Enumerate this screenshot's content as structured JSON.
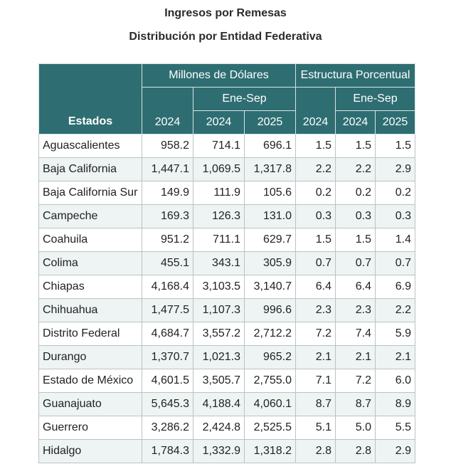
{
  "title": "Ingresos por Remesas",
  "subtitle": "Distribución por Entidad Federativa",
  "headers": {
    "estados": "Estados",
    "millones": "Millones de Dólares",
    "estructura": "Estructura Porcentual",
    "period_a": "Ene-Sep",
    "period_b": "Ene-Sep",
    "c1": "2024",
    "c2": "2024",
    "c3": "2025",
    "c4": "2024",
    "c5": "2024",
    "c6": "2025"
  },
  "rows": [
    {
      "estado": "Aguascalientes",
      "v": [
        "958.2",
        "714.1",
        "696.1",
        "1.5",
        "1.5",
        "1.5"
      ]
    },
    {
      "estado": "Baja California",
      "v": [
        "1,447.1",
        "1,069.5",
        "1,317.8",
        "2.2",
        "2.2",
        "2.9"
      ]
    },
    {
      "estado": "Baja California Sur",
      "v": [
        "149.9",
        "111.9",
        "105.6",
        "0.2",
        "0.2",
        "0.2"
      ]
    },
    {
      "estado": "Campeche",
      "v": [
        "169.3",
        "126.3",
        "131.0",
        "0.3",
        "0.3",
        "0.3"
      ]
    },
    {
      "estado": "Coahuila",
      "v": [
        "951.2",
        "711.1",
        "629.7",
        "1.5",
        "1.5",
        "1.4"
      ]
    },
    {
      "estado": "Colima",
      "v": [
        "455.1",
        "343.1",
        "305.9",
        "0.7",
        "0.7",
        "0.7"
      ]
    },
    {
      "estado": "Chiapas",
      "v": [
        "4,168.4",
        "3,103.5",
        "3,140.7",
        "6.4",
        "6.4",
        "6.9"
      ]
    },
    {
      "estado": "Chihuahua",
      "v": [
        "1,477.5",
        "1,107.3",
        "996.6",
        "2.3",
        "2.3",
        "2.2"
      ]
    },
    {
      "estado": "Distrito Federal",
      "v": [
        "4,684.7",
        "3,557.2",
        "2,712.2",
        "7.2",
        "7.4",
        "5.9"
      ]
    },
    {
      "estado": "Durango",
      "v": [
        "1,370.7",
        "1,021.3",
        "965.2",
        "2.1",
        "2.1",
        "2.1"
      ]
    },
    {
      "estado": "Estado de México",
      "v": [
        "4,601.5",
        "3,505.7",
        "2,755.0",
        "7.1",
        "7.2",
        "6.0"
      ]
    },
    {
      "estado": "Guanajuato",
      "v": [
        "5,645.3",
        "4,188.4",
        "4,060.1",
        "8.7",
        "8.7",
        "8.9"
      ]
    },
    {
      "estado": "Guerrero",
      "v": [
        "3,286.2",
        "2,424.8",
        "2,525.5",
        "5.1",
        "5.0",
        "5.5"
      ]
    },
    {
      "estado": "Hidalgo",
      "v": [
        "1,784.3",
        "1,332.9",
        "1,318.2",
        "2.8",
        "2.8",
        "2.9"
      ]
    }
  ]
}
